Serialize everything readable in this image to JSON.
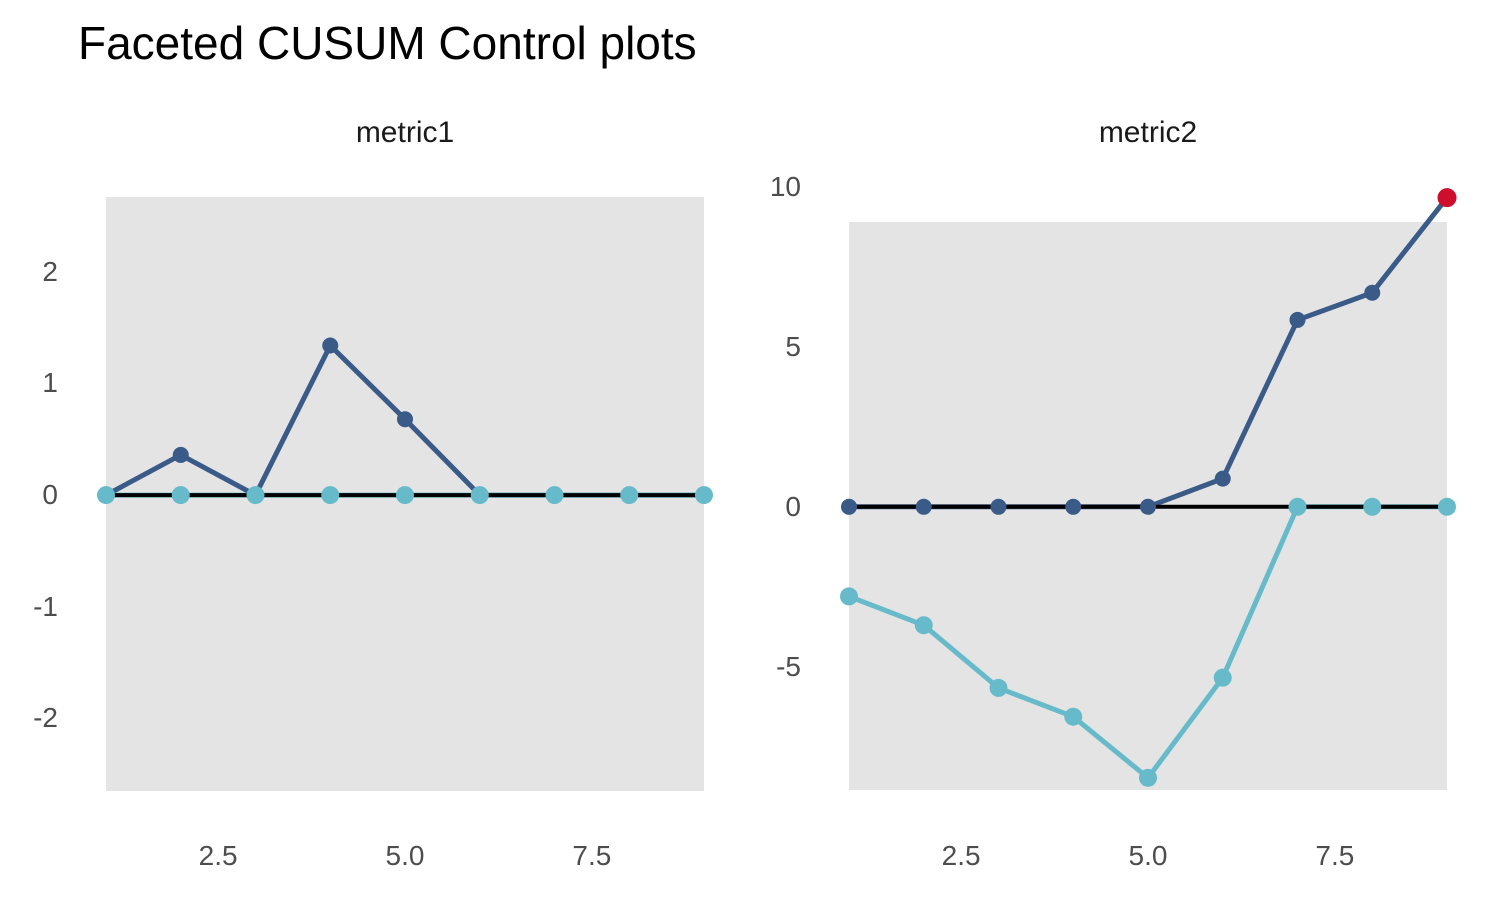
{
  "title": "Faceted CUSUM Control plots",
  "colors": {
    "cusum_upper": "#3a5a88",
    "cusum_lower": "#66bac9",
    "violation": "#cd0f2d",
    "centerline": "#000000",
    "panel_background": "#e4e4e4",
    "tick_text": "#4d4d4d",
    "facet_title_text": "#1a1a1a"
  },
  "chart_data": [
    {
      "type": "line",
      "title": "metric1",
      "x": [
        1,
        2,
        3,
        4,
        5,
        6,
        7,
        8,
        9
      ],
      "series": [
        {
          "name": "cusum_upper",
          "color_key": "cusum_upper",
          "values": [
            0,
            0.36,
            0,
            1.34,
            0.68,
            0,
            0,
            0,
            0
          ]
        },
        {
          "name": "cusum_lower",
          "color_key": "cusum_lower",
          "values": [
            0,
            0,
            0,
            0,
            0,
            0,
            0,
            0,
            0
          ]
        }
      ],
      "centerline": 0,
      "violations": [],
      "xlim": [
        1,
        9
      ],
      "ylim": [
        -2.65,
        2.67
      ],
      "xticks": [
        2.5,
        5.0,
        7.5
      ],
      "xtick_labels": [
        "2.5",
        "5.0",
        "7.5"
      ],
      "yticks": [
        2,
        1,
        0,
        -1,
        -2
      ],
      "ytick_labels": [
        "2",
        "1",
        "0",
        "-1",
        "-2"
      ],
      "grid": "off",
      "legend": "none"
    },
    {
      "type": "line",
      "title": "metric2",
      "x": [
        1,
        2,
        3,
        4,
        5,
        6,
        7,
        8,
        9
      ],
      "series": [
        {
          "name": "cusum_upper",
          "color_key": "cusum_upper",
          "values": [
            0,
            0,
            0,
            0,
            0,
            0.88,
            5.84,
            6.69,
            9.66
          ]
        },
        {
          "name": "cusum_lower",
          "color_key": "cusum_lower",
          "values": [
            -2.8,
            -3.7,
            -5.66,
            -6.56,
            -8.47,
            -5.34,
            0,
            0,
            0
          ]
        }
      ],
      "centerline": 0,
      "violations": [
        {
          "x": 9,
          "value": 9.66
        }
      ],
      "xlim": [
        1,
        9
      ],
      "ylim": [
        -8.85,
        8.9
      ],
      "xticks": [
        2.5,
        5.0,
        7.5
      ],
      "xtick_labels": [
        "2.5",
        "5.0",
        "7.5"
      ],
      "yticks": [
        10,
        5,
        0,
        -5
      ],
      "ytick_labels": [
        "10",
        "5",
        "0",
        "-5"
      ],
      "grid": "off",
      "legend": "none"
    }
  ]
}
